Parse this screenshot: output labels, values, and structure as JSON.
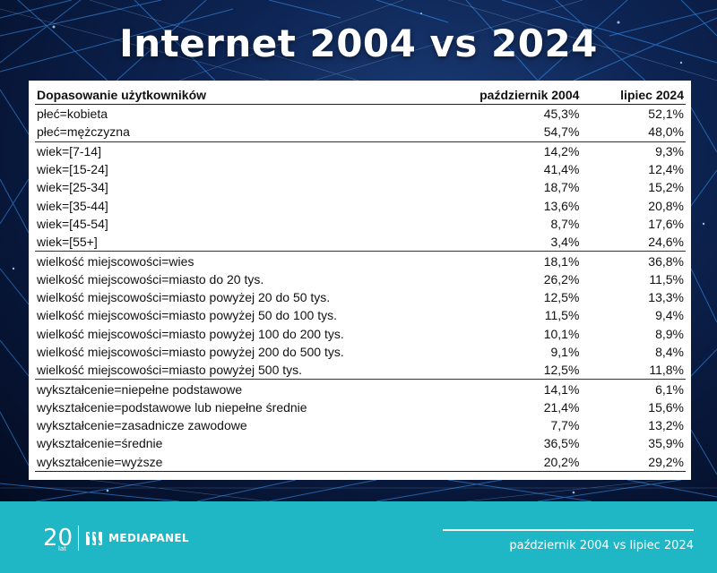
{
  "title": "Internet 2004 vs 2024",
  "table": {
    "headers": [
      "Dopasowanie użytkowników",
      "październik 2004",
      "lipiec 2024"
    ],
    "rows": [
      {
        "label": "płeć=kobieta",
        "v2004": "45,3%",
        "v2024": "52,1%",
        "group_start": false
      },
      {
        "label": "płeć=mężczyzna",
        "v2004": "54,7%",
        "v2024": "48,0%",
        "group_start": false
      },
      {
        "label": "wiek=[7-14]",
        "v2004": "14,2%",
        "v2024": "9,3%",
        "group_start": true
      },
      {
        "label": "wiek=[15-24]",
        "v2004": "41,4%",
        "v2024": "12,4%",
        "group_start": false
      },
      {
        "label": "wiek=[25-34]",
        "v2004": "18,7%",
        "v2024": "15,2%",
        "group_start": false
      },
      {
        "label": "wiek=[35-44]",
        "v2004": "13,6%",
        "v2024": "20,8%",
        "group_start": false
      },
      {
        "label": "wiek=[45-54]",
        "v2004": "8,7%",
        "v2024": "17,6%",
        "group_start": false
      },
      {
        "label": "wiek=[55+]",
        "v2004": "3,4%",
        "v2024": "24,6%",
        "group_start": false
      },
      {
        "label": "wielkość miejscowości=wies",
        "v2004": "18,1%",
        "v2024": "36,8%",
        "group_start": true
      },
      {
        "label": "wielkość miejscowości=miasto do 20 tys.",
        "v2004": "26,2%",
        "v2024": "11,5%",
        "group_start": false
      },
      {
        "label": "wielkość miejscowości=miasto powyżej 20 do 50 tys.",
        "v2004": "12,5%",
        "v2024": "13,3%",
        "group_start": false
      },
      {
        "label": "wielkość miejscowości=miasto powyżej 50 do 100 tys.",
        "v2004": "11,5%",
        "v2024": "9,4%",
        "group_start": false
      },
      {
        "label": "wielkość miejscowości=miasto powyżej 100 do 200 tys.",
        "v2004": "10,1%",
        "v2024": "8,9%",
        "group_start": false
      },
      {
        "label": "wielkość miejscowości=miasto powyżej 200 do 500 tys.",
        "v2004": "9,1%",
        "v2024": "8,4%",
        "group_start": false
      },
      {
        "label": "wielkość miejscowości=miasto powyżej 500 tys.",
        "v2004": "12,5%",
        "v2024": "11,8%",
        "group_start": false
      },
      {
        "label": "wykształcenie=niepełne podstawowe",
        "v2004": "14,1%",
        "v2024": "6,1%",
        "group_start": true
      },
      {
        "label": "wykształcenie=podstawowe lub niepełne średnie",
        "v2004": "21,4%",
        "v2024": "15,6%",
        "group_start": false
      },
      {
        "label": "wykształcenie=zasadnicze zawodowe",
        "v2004": "7,7%",
        "v2024": "13,2%",
        "group_start": false
      },
      {
        "label": "wykształcenie=średnie",
        "v2004": "36,5%",
        "v2024": "35,9%",
        "group_start": false
      },
      {
        "label": "wykształcenie=wyższe",
        "v2004": "20,2%",
        "v2024": "29,2%",
        "group_start": false
      }
    ]
  },
  "logo": {
    "years": "20",
    "years_caption": "lat",
    "brand": "MEDIAPANEL",
    "icon": "mediapanel-logo-icon"
  },
  "footer": {
    "caption": "październik 2004 vs lipiec 2024"
  },
  "colors": {
    "footer": "#1fb6c6",
    "background": "#0a1a3a",
    "lines": "#3aa0ff"
  }
}
